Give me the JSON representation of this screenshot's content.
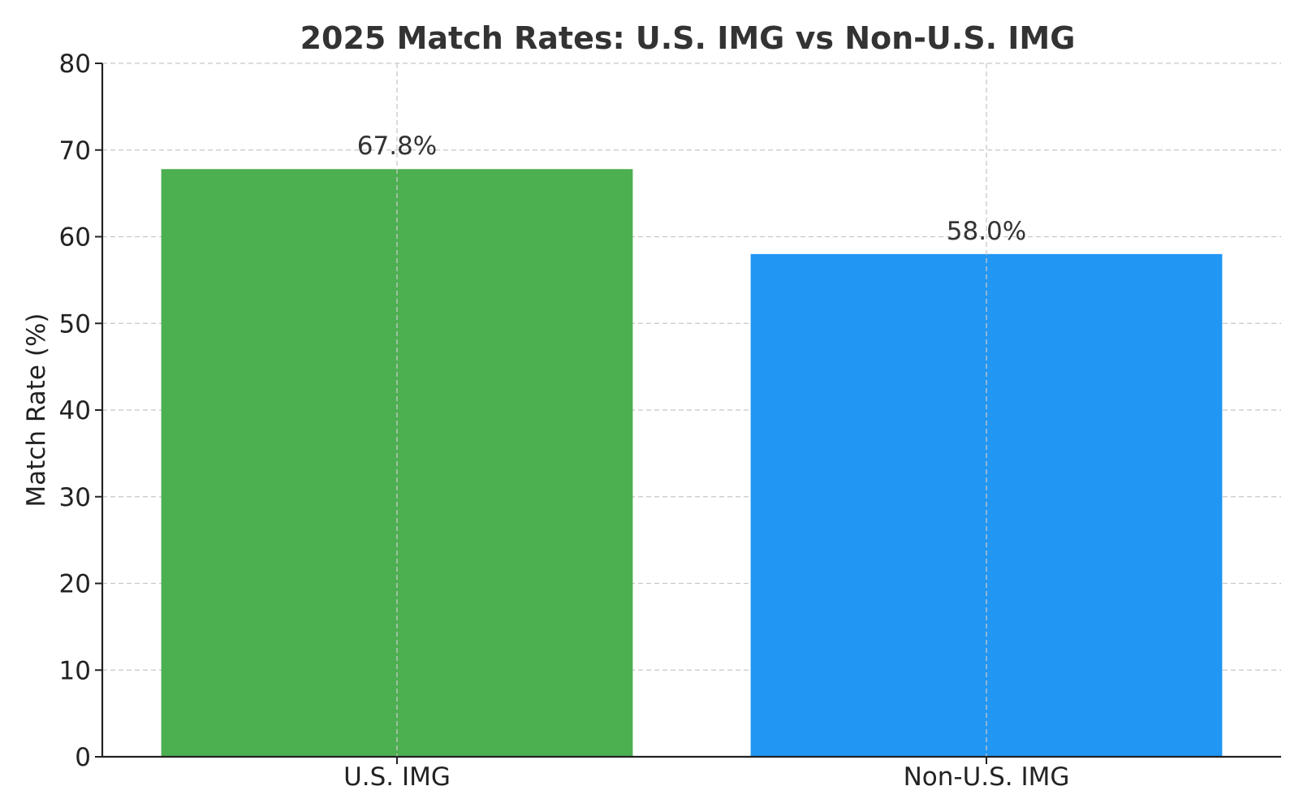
{
  "chart_data": {
    "type": "bar",
    "title": "2025 Match Rates: U.S. IMG vs Non-U.S. IMG",
    "xlabel": "",
    "ylabel": "Match Rate (%)",
    "categories": [
      "U.S. IMG",
      "Non-U.S. IMG"
    ],
    "values": [
      67.8,
      58.0
    ],
    "value_labels": [
      "67.8%",
      "58.0%"
    ],
    "colors": [
      "#4caf50",
      "#2196f3"
    ],
    "ylim": [
      0,
      80
    ],
    "yticks": [
      0,
      10,
      20,
      30,
      40,
      50,
      60,
      70,
      80
    ],
    "ytick_labels": [
      "0",
      "10",
      "20",
      "30",
      "40",
      "50",
      "60",
      "70",
      "80"
    ],
    "grid": true,
    "grid_style": "dashed",
    "legend": "none"
  }
}
